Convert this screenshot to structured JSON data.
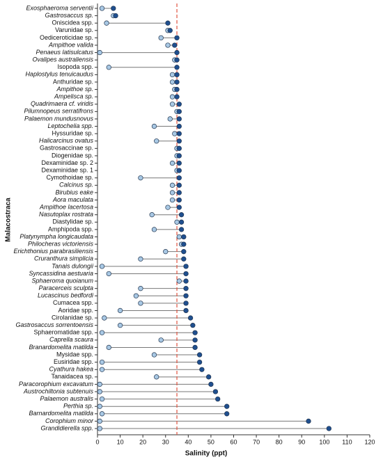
{
  "chart_data": {
    "type": "dumbbell",
    "xlabel": "Salinity (ppt)",
    "ylabel": "Malacostraca",
    "categories": [
      "Exosphaeroma serventii",
      "Gastrosaccus sp.",
      "Oniscidea spp.",
      "Varunidae sp.",
      "Oediceroticidae sp.",
      "Ampithoe valida",
      "Penaeus latisulcatus",
      "Ovalipes australiensis",
      "Isopoda spp.",
      "Haplostylus tenuicaudus",
      "Anthuridae sp.",
      "Ampithoe sp.",
      "Ampelisca sp.",
      "Quadrimaera cf. viridis",
      "Pilumnopeus serratifrons",
      "Palaemon mundusnovus",
      "Leptochelia spp.",
      "Hyssuridae sp.",
      "Halicarcinus ovatus",
      "Gastrosaccinae sp.",
      "Diogenidae sp.",
      "Dexaminidae sp. 2",
      "Dexaminidae sp. 1",
      "Cymothoidae sp.",
      "Calcinus sp.",
      "Birubius eake",
      "Aora maculata",
      "Ampithoe lacertosa",
      "Nasutoplax rostrata",
      "Diastylidae sp.",
      "Amphipoda spp.",
      "Platynympha longicaudata",
      "Philocheras victoriensis",
      "Erichthonius parabrasiliensis",
      "Cruranthura simplicia",
      "Tanais dulongii",
      "Syncassidina aestuaria",
      "Sphaeroma quoianum",
      "Paracerceis sculpta",
      "Lucascinus bedfordi",
      "Cumacea spp.",
      "Aoridae spp.",
      "Cirolanidae sp.",
      "Gastrosaccus sorrentoensis",
      "Sphaeromatidae spp.",
      "Caprella scaura",
      "Branardomelita matilda",
      "Mysidae spp.",
      "Eusiridae spp.",
      "Cyathura hakea",
      "Tanaidacea sp.",
      "Paracorophium excavatum",
      "Austrochiltonia subtenuis",
      "Palaemon australis",
      "Perthia sp.",
      "Barnardomelita matilda",
      "Corophium minor",
      "Grandidierella spp."
    ],
    "series": [
      {
        "color": "#a8c8e4",
        "values": [
          2,
          7,
          4,
          31,
          28,
          31,
          1,
          34,
          5,
          33,
          33,
          34,
          33,
          33,
          35,
          32,
          25,
          34,
          26,
          35,
          35,
          33,
          35,
          19,
          33,
          33,
          33,
          31,
          24,
          35,
          25,
          36,
          37,
          30,
          19,
          2,
          5,
          36,
          19,
          17,
          19,
          10,
          3,
          10,
          2,
          28,
          5,
          25,
          2,
          2,
          26,
          1,
          1,
          2,
          1,
          2,
          1,
          1
        ]
      },
      {
        "color": "#1f4f8f",
        "values": [
          7,
          8,
          31,
          32,
          35,
          34,
          35,
          35,
          35,
          35,
          35,
          35,
          35,
          36,
          36,
          36,
          36,
          36,
          36,
          36,
          36,
          36,
          36,
          36,
          36,
          36,
          36,
          36,
          37,
          37,
          37,
          38,
          38,
          38,
          38,
          39,
          39,
          39,
          39,
          39,
          39,
          39,
          41,
          42,
          43,
          43,
          43,
          45,
          45,
          46,
          49,
          50,
          52,
          53,
          57,
          57,
          93,
          102
        ]
      }
    ],
    "xlim": [
      0,
      120
    ],
    "xticks": [
      0,
      10,
      20,
      30,
      40,
      50,
      60,
      70,
      80,
      90,
      100,
      110,
      120
    ],
    "reference_line": 35,
    "reference_color": "#e0533f"
  }
}
